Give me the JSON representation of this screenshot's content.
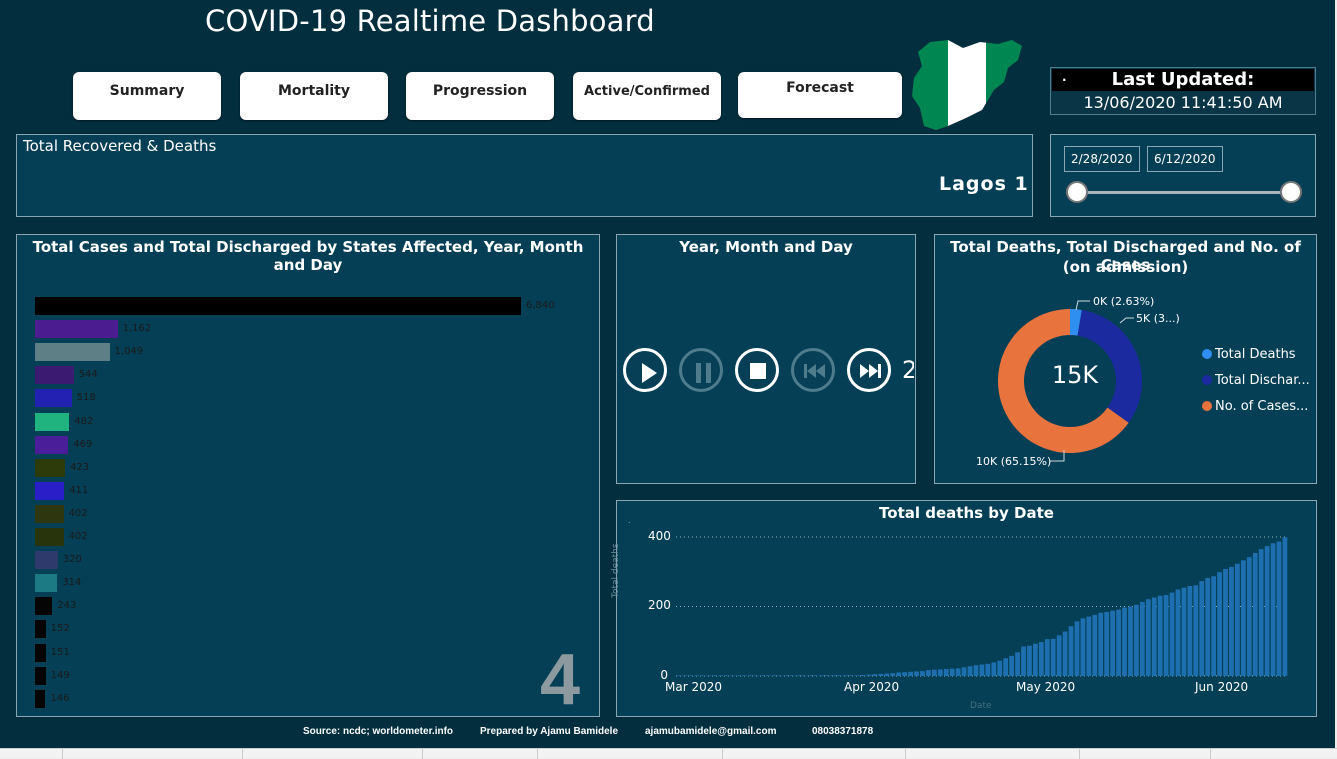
{
  "title": "COVID-19 Realtime Dashboard",
  "nav": [
    {
      "label": "Summary"
    },
    {
      "label": "Mortality"
    },
    {
      "label": "Progression"
    },
    {
      "label": "Active/Confirmed"
    },
    {
      "label": "Forecast"
    }
  ],
  "last_updated": {
    "title": "Last Updated:",
    "value": "13/06/2020 11:41:50 AM",
    "marker": "."
  },
  "recovered_panel": {
    "title": "Total Recovered & Deaths",
    "ticker": "Lagos 1"
  },
  "date_slicer": {
    "start": "2/28/2020",
    "end": "6/12/2020"
  },
  "states_chart": {
    "title": "Total Cases and Total Discharged by States Affected, Year, Month and Day",
    "frame_label": "4"
  },
  "playback": {
    "title": "Year, Month and Day",
    "controls": [
      "play",
      "pause",
      "stop",
      "previous",
      "next"
    ],
    "current": "2"
  },
  "donut": {
    "title_line1": "Total Deaths, Total Discharged and No. of Cases",
    "title_line2": "(on admission)",
    "center": "15K",
    "labels": [
      "0K (2.63%)",
      "5K (3...)",
      "10K (65.15%)"
    ],
    "legend": [
      "Total Deaths",
      "Total Dischar...",
      "No. of Cases..."
    ],
    "colors": [
      "#2f8ff0",
      "#1c2aa0",
      "#e8733c"
    ]
  },
  "deaths_chart": {
    "title": "Total deaths by Date",
    "xlabel": "Date",
    "ylabel": "Total deaths",
    "yticks": [
      "0",
      "200",
      "400"
    ],
    "xticks": [
      "Mar 2020",
      "Apr 2020",
      "May 2020",
      "Jun 2020"
    ]
  },
  "footer": {
    "source": "Source: ncdc; worldometer.info",
    "prepared": "Prepared by Ajamu Bamidele",
    "email": "ajamubamidele@gmail.com",
    "phone": "08038371878"
  },
  "chart_data": [
    {
      "type": "bar",
      "categories": [
        "Lagos",
        "FCT",
        "Kano",
        "Ogun",
        "Edo",
        "Rivers",
        "Oyo",
        "Borno",
        "Katsina",
        "Bauchi",
        "Kaduna",
        "Gombe",
        "Jigawa",
        "Delta",
        "Nasarawa",
        "Ebonyi",
        "Zamfara",
        "Sokoto"
      ],
      "display_labels": [
        "",
        "FCT",
        "Kano",
        "Ogun",
        "Edo",
        "Rivers",
        "Oyo",
        "3orno",
        "itsina",
        "auchi",
        "duna",
        "mbe",
        "awa",
        "elt",
        "ay",
        "oi",
        "ra",
        "au"
      ],
      "values": [
        6840,
        1162,
        1049,
        544,
        518,
        482,
        469,
        423,
        411,
        402,
        402,
        320,
        314,
        243,
        152,
        151,
        149,
        146
      ],
      "value_labels": [
        "6,840",
        "1,162",
        "1,049",
        "544",
        "518",
        "482",
        "469",
        "423",
        "411",
        "402",
        "402",
        "320",
        "314",
        "243",
        "152",
        "151",
        "149",
        "146"
      ],
      "colors": [
        "#000000",
        "#4b1b90",
        "#5f7f86",
        "#3b1a72",
        "#2321b2",
        "#20b380",
        "#4a1d99",
        "#2c3b09",
        "#2a1ec8",
        "#2e3610",
        "#28340b",
        "#2d3a6b",
        "#1b7a83",
        "#050505",
        "#050505",
        "#050505",
        "#050505",
        "#050505"
      ]
    },
    {
      "type": "pie",
      "categories": [
        "Total Deaths",
        "Total Discharged",
        "No. of Cases (on admission)"
      ],
      "values": [
        2.63,
        32.22,
        65.15
      ],
      "total": "15K"
    },
    {
      "type": "bar",
      "title": "Total deaths by Date",
      "xlabel": "Date",
      "ylabel": "Total deaths",
      "x_start": "2020-02-28",
      "x_end": "2020-06-12",
      "ylim": [
        0,
        420
      ],
      "values": [
        0,
        0,
        0,
        0,
        0,
        0,
        0,
        0,
        0,
        0,
        0,
        0,
        0,
        0,
        0,
        0,
        0,
        0,
        1,
        1,
        1,
        1,
        1,
        1,
        2,
        2,
        2,
        2,
        2,
        2,
        2,
        3,
        4,
        5,
        6,
        7,
        8,
        10,
        11,
        12,
        13,
        14,
        17,
        18,
        19,
        20,
        21,
        22,
        25,
        28,
        31,
        33,
        35,
        39,
        44,
        51,
        58,
        68,
        85,
        87,
        93,
        98,
        106,
        107,
        117,
        128,
        143,
        157,
        166,
        171,
        176,
        182,
        184,
        188,
        191,
        197,
        200,
        205,
        213,
        221,
        226,
        231,
        233,
        240,
        249,
        254,
        259,
        261,
        273,
        282,
        287,
        299,
        308,
        314,
        323,
        333,
        342,
        354,
        365,
        374,
        382,
        387,
        399
      ]
    }
  ]
}
